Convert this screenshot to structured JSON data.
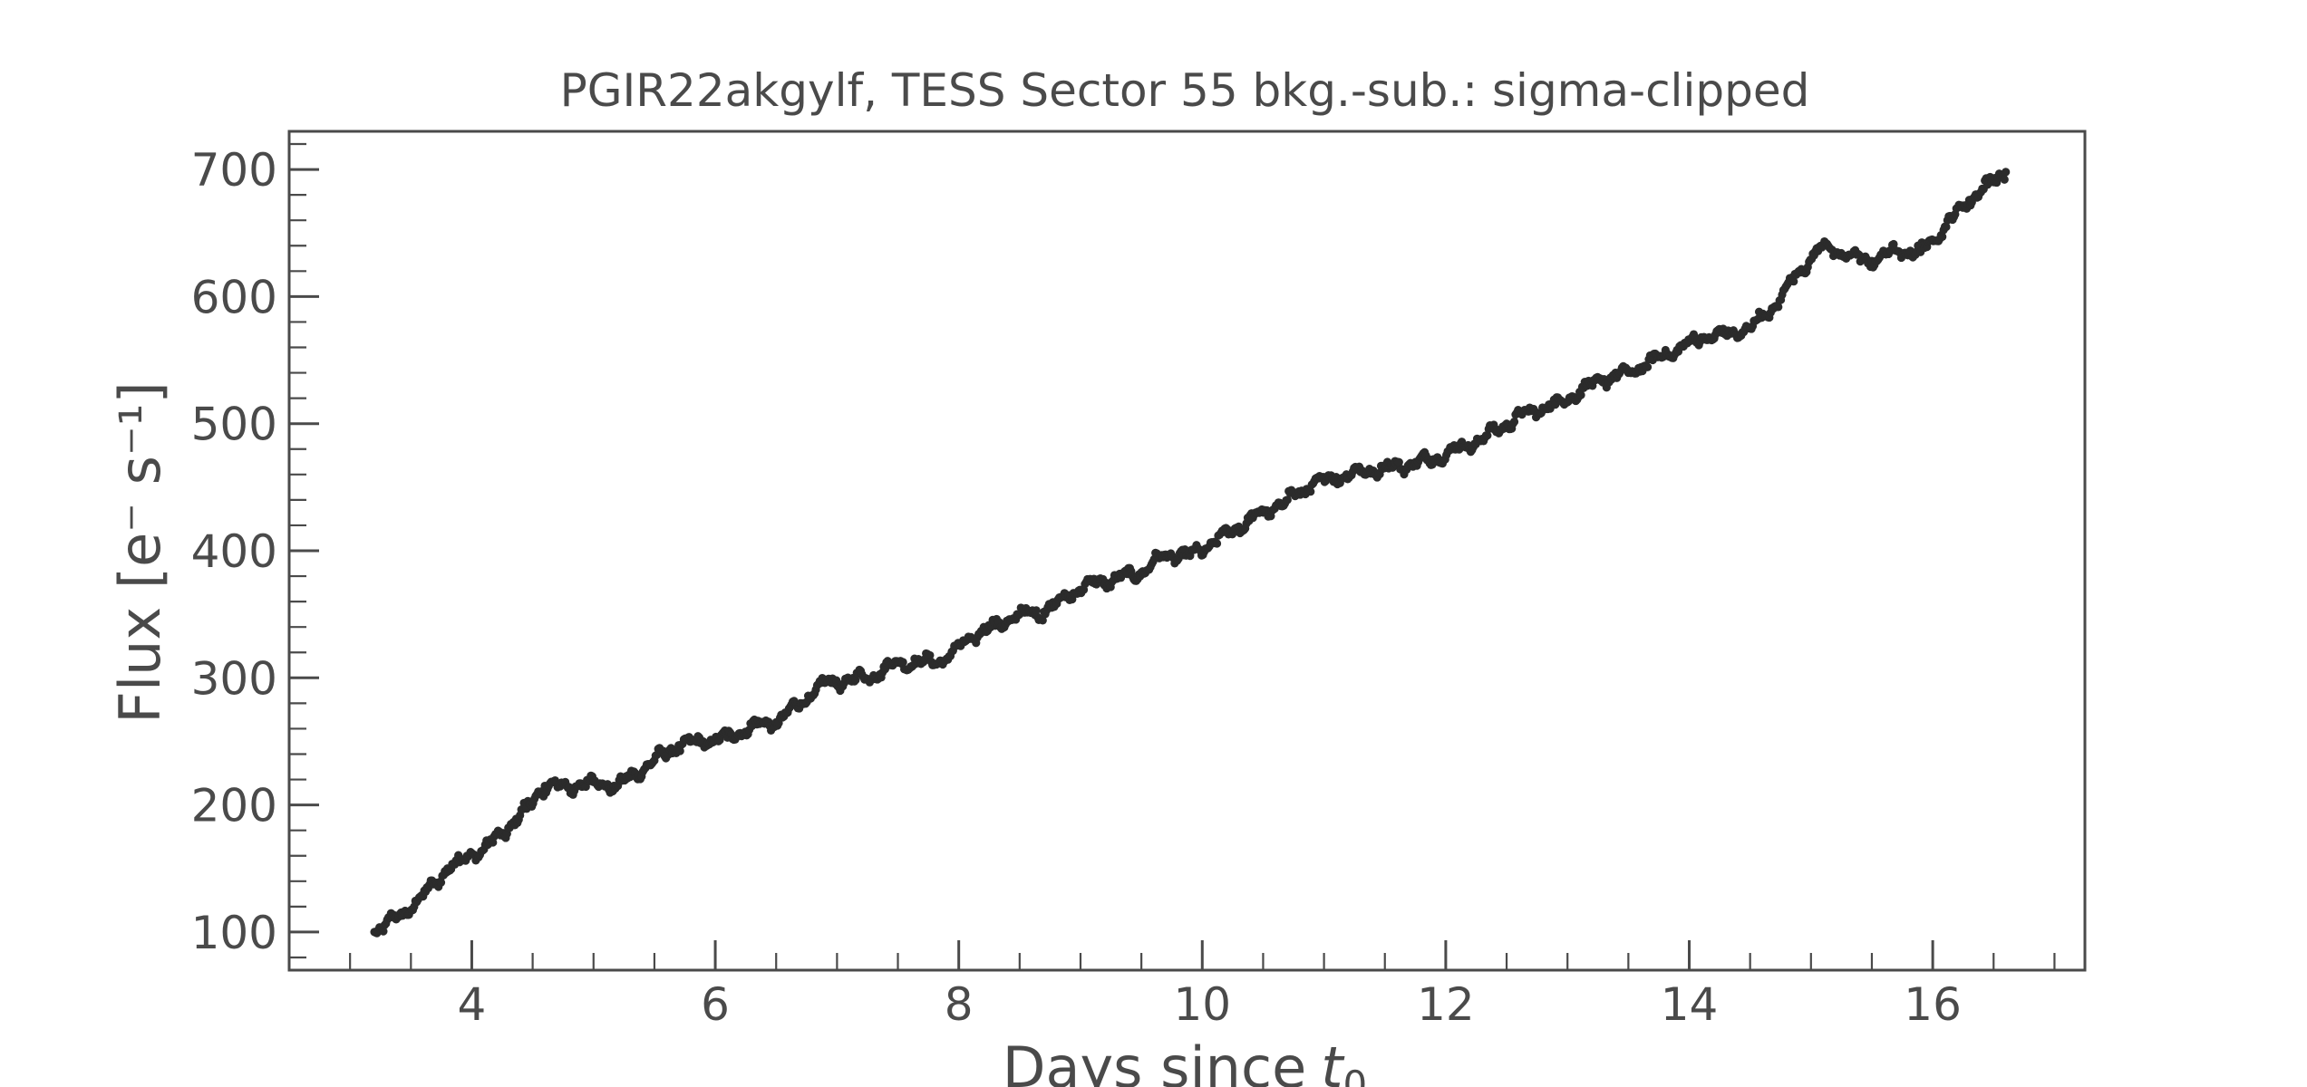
{
  "chart_data": {
    "type": "scatter",
    "title": "PGIR22akgylf, TESS Sector 55 bkg.-sub.: sigma-clipped",
    "xlabel": "Days since",
    "xlabel_symbol": "t",
    "xlabel_subscript": "0",
    "ylabel": "Flux [e⁻ s⁻¹]",
    "xlim": [
      2.5,
      17.25
    ],
    "ylim": [
      70,
      730
    ],
    "x_ticks": [
      4,
      6,
      8,
      10,
      12,
      14,
      16
    ],
    "y_ticks": [
      100,
      200,
      300,
      400,
      500,
      600,
      700
    ],
    "x_tick_labels": [
      "4",
      "6",
      "8",
      "10",
      "12",
      "14",
      "16"
    ],
    "y_tick_labels": [
      "100",
      "200",
      "300",
      "400",
      "500",
      "600",
      "700"
    ],
    "x_minor_step": 0.5,
    "y_minor_step": 20,
    "grid": false,
    "marker_color": "#2b2b2b",
    "series": [
      {
        "x": [
          3.2,
          3.4,
          3.6,
          3.8,
          3.9,
          4.0,
          4.1,
          4.3,
          4.45,
          4.6,
          4.8,
          5.0,
          5.2,
          5.3,
          5.5,
          5.7,
          5.9,
          6.1,
          6.3,
          6.5,
          6.7,
          6.9,
          7.1,
          7.3,
          7.5,
          7.7,
          7.9,
          8.1,
          8.3,
          8.5,
          8.7,
          8.9,
          9.1,
          9.3,
          9.5,
          9.7,
          9.9,
          10.1,
          10.3,
          10.5,
          10.7,
          10.9,
          11.1,
          11.3,
          11.5,
          11.7,
          11.9,
          12.1,
          12.3,
          12.5,
          12.7,
          12.9,
          13.1,
          13.3,
          13.5,
          13.7,
          13.9,
          14.1,
          14.3,
          14.5,
          14.7,
          14.9,
          15.1,
          15.3,
          15.5,
          15.7,
          15.9,
          16.1,
          16.3,
          16.45,
          16.6
        ],
        "y": [
          100,
          112,
          128,
          150,
          155,
          162,
          165,
          182,
          197,
          215,
          214,
          218,
          215,
          222,
          235,
          247,
          250,
          253,
          262,
          265,
          280,
          296,
          298,
          302,
          312,
          312,
          315,
          332,
          341,
          350,
          352,
          365,
          375,
          378,
          383,
          397,
          396,
          407,
          419,
          430,
          440,
          452,
          458,
          462,
          465,
          468,
          472,
          480,
          488,
          500,
          510,
          515,
          525,
          535,
          540,
          550,
          558,
          568,
          570,
          575,
          592,
          620,
          640,
          632,
          628,
          636,
          635,
          655,
          676,
          688,
          698
        ]
      }
    ]
  }
}
